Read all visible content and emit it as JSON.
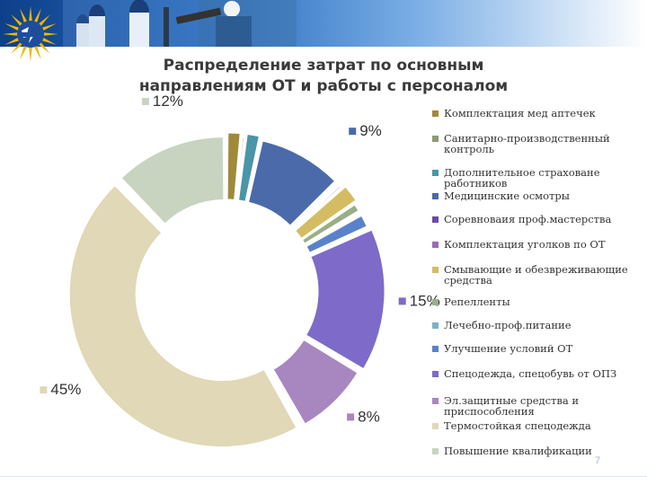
{
  "title": {
    "line1": "Распределение затрат по основным",
    "line2": "направлениям ОТ и работы с персоналом"
  },
  "page_number": "7",
  "colors": {
    "banner_dark": "#0e3f8a",
    "banner_light": "#7db0e6",
    "logo_sun": "#f2b500",
    "logo_blue": "#1d4e9c"
  },
  "chart_data": {
    "type": "pie",
    "variant": "donut",
    "title": "Распределение затрат по основным направлениям ОТ и работы с персоналом",
    "legend_placement": "right",
    "categories": [
      "Комплектация мед аптечек",
      "Санитарно-производственный контроль",
      "Дополнительное страховане работников",
      "Медицинские осмотры",
      "Соревноваия проф.мастерства",
      "Комплектация уголков по ОТ",
      "Смывающие и обезвреживающие средства",
      "Репелленты",
      "Лечебно-проф.питание",
      "Улучшение условий ОТ",
      "Спецодежда, спецобувь от ОПЗ",
      "Эл.защитные средства и приспособления",
      "Термостойкая спецодежда",
      "Повышение квалификации"
    ],
    "values": [
      1.5,
      0.4,
      1.5,
      9,
      0.3,
      0.4,
      2,
      1,
      0.3,
      1.5,
      15,
      8,
      45,
      12
    ],
    "data_labels": [
      "",
      "",
      "",
      "9%",
      "",
      "",
      "",
      "",
      "",
      "",
      "15%",
      "8%",
      "45%",
      "12%"
    ],
    "colors": [
      "#a08a3a",
      "#8c9a72",
      "#4a95a8",
      "#4a6aaa",
      "#6a4aa6",
      "#9a6ab8",
      "#d4bc62",
      "#9aae86",
      "#78b4c4",
      "#5a82ca",
      "#7e6ac8",
      "#a886c0",
      "#e0d8b6",
      "#c8d4c0"
    ]
  }
}
